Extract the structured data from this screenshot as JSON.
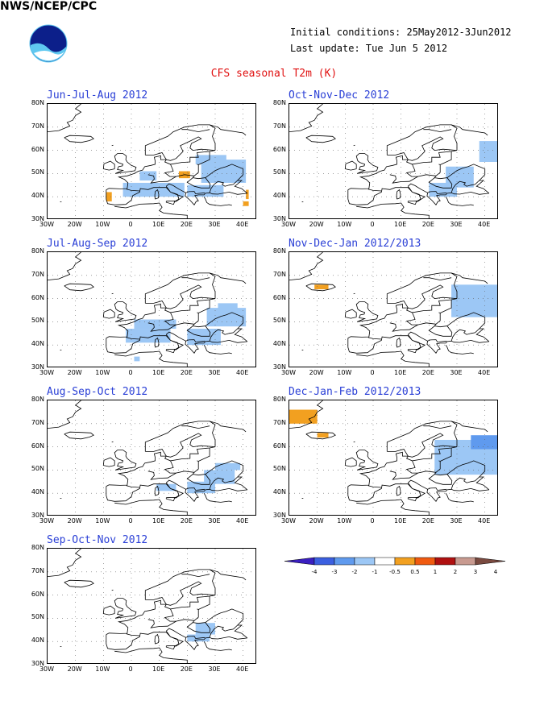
{
  "header": {
    "agency": "NWS/NCEP/CPC",
    "initial_conditions": "Initial conditions: 25May2012-3Jun2012",
    "last_update": "Last update: Tue Jun 5 2012",
    "title": "CFS seasonal T2m (K)"
  },
  "axes": {
    "lat_labels": [
      "80N",
      "70N",
      "60N",
      "50N",
      "40N",
      "30N"
    ],
    "lon_labels": [
      "30W",
      "20W",
      "10W",
      "0",
      "10E",
      "20E",
      "30E",
      "40E"
    ]
  },
  "panels": [
    {
      "title": "Jun-Jul-Aug 2012",
      "anomalies": [
        {
          "lon": [
            25,
            41
          ],
          "lat": [
            46,
            56
          ],
          "value": -1
        },
        {
          "lon": [
            23,
            34
          ],
          "lat": [
            54,
            58
          ],
          "value": -1
        },
        {
          "lon": [
            3,
            9
          ],
          "lat": [
            47,
            51
          ],
          "value": -1
        },
        {
          "lon": [
            -3,
            19
          ],
          "lat": [
            40,
            46
          ],
          "value": -1
        },
        {
          "lon": [
            20,
            33
          ],
          "lat": [
            40,
            45
          ],
          "value": -1
        },
        {
          "lon": [
            17,
            21
          ],
          "lat": [
            48,
            51
          ],
          "value": 1
        },
        {
          "lon": [
            -9,
            -7
          ],
          "lat": [
            38,
            42
          ],
          "value": 1
        },
        {
          "lon": [
            41,
            42
          ],
          "lat": [
            39,
            43
          ],
          "value": 1
        },
        {
          "lon": [
            40,
            42
          ],
          "lat": [
            36,
            38
          ],
          "value": 1
        }
      ]
    },
    {
      "title": "Oct-Nov-Dec 2012",
      "anomalies": [
        {
          "lon": [
            38,
            45
          ],
          "lat": [
            55,
            64
          ],
          "value": -1
        },
        {
          "lon": [
            26,
            36
          ],
          "lat": [
            44,
            53
          ],
          "value": -1
        },
        {
          "lon": [
            20,
            30
          ],
          "lat": [
            40,
            46
          ],
          "value": -1
        }
      ]
    },
    {
      "title": "Jul-Aug-Sep 2012",
      "anomalies": [
        {
          "lon": [
            27,
            41
          ],
          "lat": [
            48,
            56
          ],
          "value": -1
        },
        {
          "lon": [
            31,
            38
          ],
          "lat": [
            55,
            58
          ],
          "value": -1
        },
        {
          "lon": [
            1,
            16
          ],
          "lat": [
            47,
            51
          ],
          "value": -1
        },
        {
          "lon": [
            -2,
            14
          ],
          "lat": [
            41,
            47
          ],
          "value": -1
        },
        {
          "lon": [
            20,
            32
          ],
          "lat": [
            40,
            47
          ],
          "value": -1
        },
        {
          "lon": [
            1,
            3
          ],
          "lat": [
            33,
            35
          ],
          "value": -1
        }
      ]
    },
    {
      "title": "Nov-Dec-Jan 2012/2013",
      "anomalies": [
        {
          "lon": [
            28,
            45
          ],
          "lat": [
            52,
            66
          ],
          "value": -1
        },
        {
          "lon": [
            -21,
            -16
          ],
          "lat": [
            64,
            66
          ],
          "value": 1
        }
      ]
    },
    {
      "title": "Aug-Sep-Oct 2012",
      "anomalies": [
        {
          "lon": [
            30,
            39
          ],
          "lat": [
            50,
            53
          ],
          "value": -1
        },
        {
          "lon": [
            26,
            37
          ],
          "lat": [
            44,
            50
          ],
          "value": -1
        },
        {
          "lon": [
            20,
            30
          ],
          "lat": [
            40,
            45
          ],
          "value": -1
        },
        {
          "lon": [
            9,
            16
          ],
          "lat": [
            41,
            44
          ],
          "value": -1
        }
      ]
    },
    {
      "title": "Dec-Jan-Feb 2012/2013",
      "anomalies": [
        {
          "lon": [
            22,
            45
          ],
          "lat": [
            48,
            63
          ],
          "value": -1
        },
        {
          "lon": [
            35,
            45
          ],
          "lat": [
            59,
            65
          ],
          "value": -2
        },
        {
          "lon": [
            -30,
            -20
          ],
          "lat": [
            70,
            76
          ],
          "value": 1
        },
        {
          "lon": [
            -20,
            -16
          ],
          "lat": [
            64,
            66
          ],
          "value": 1
        }
      ]
    },
    {
      "title": "Sep-Oct-Nov 2012",
      "anomalies": [
        {
          "lon": [
            23,
            30
          ],
          "lat": [
            43,
            48
          ],
          "value": -1
        },
        {
          "lon": [
            20,
            28
          ],
          "lat": [
            40,
            43
          ],
          "value": -1
        }
      ]
    }
  ],
  "legend": {
    "labels": [
      "-4",
      "-3",
      "-2",
      "-1",
      "-0.5",
      "0.5",
      "1",
      "2",
      "3",
      "4"
    ],
    "colors": [
      "#3a1fc0",
      "#3b5fe0",
      "#5f9aee",
      "#9cc7f5",
      "#ffffff",
      "#f2a020",
      "#f05a10",
      "#b01010",
      "#c89a90",
      "#7a4a40"
    ]
  },
  "colors": {
    "cold": "#9cc7f5",
    "cold2": "#5f9aee",
    "warm": "#f2a020"
  }
}
